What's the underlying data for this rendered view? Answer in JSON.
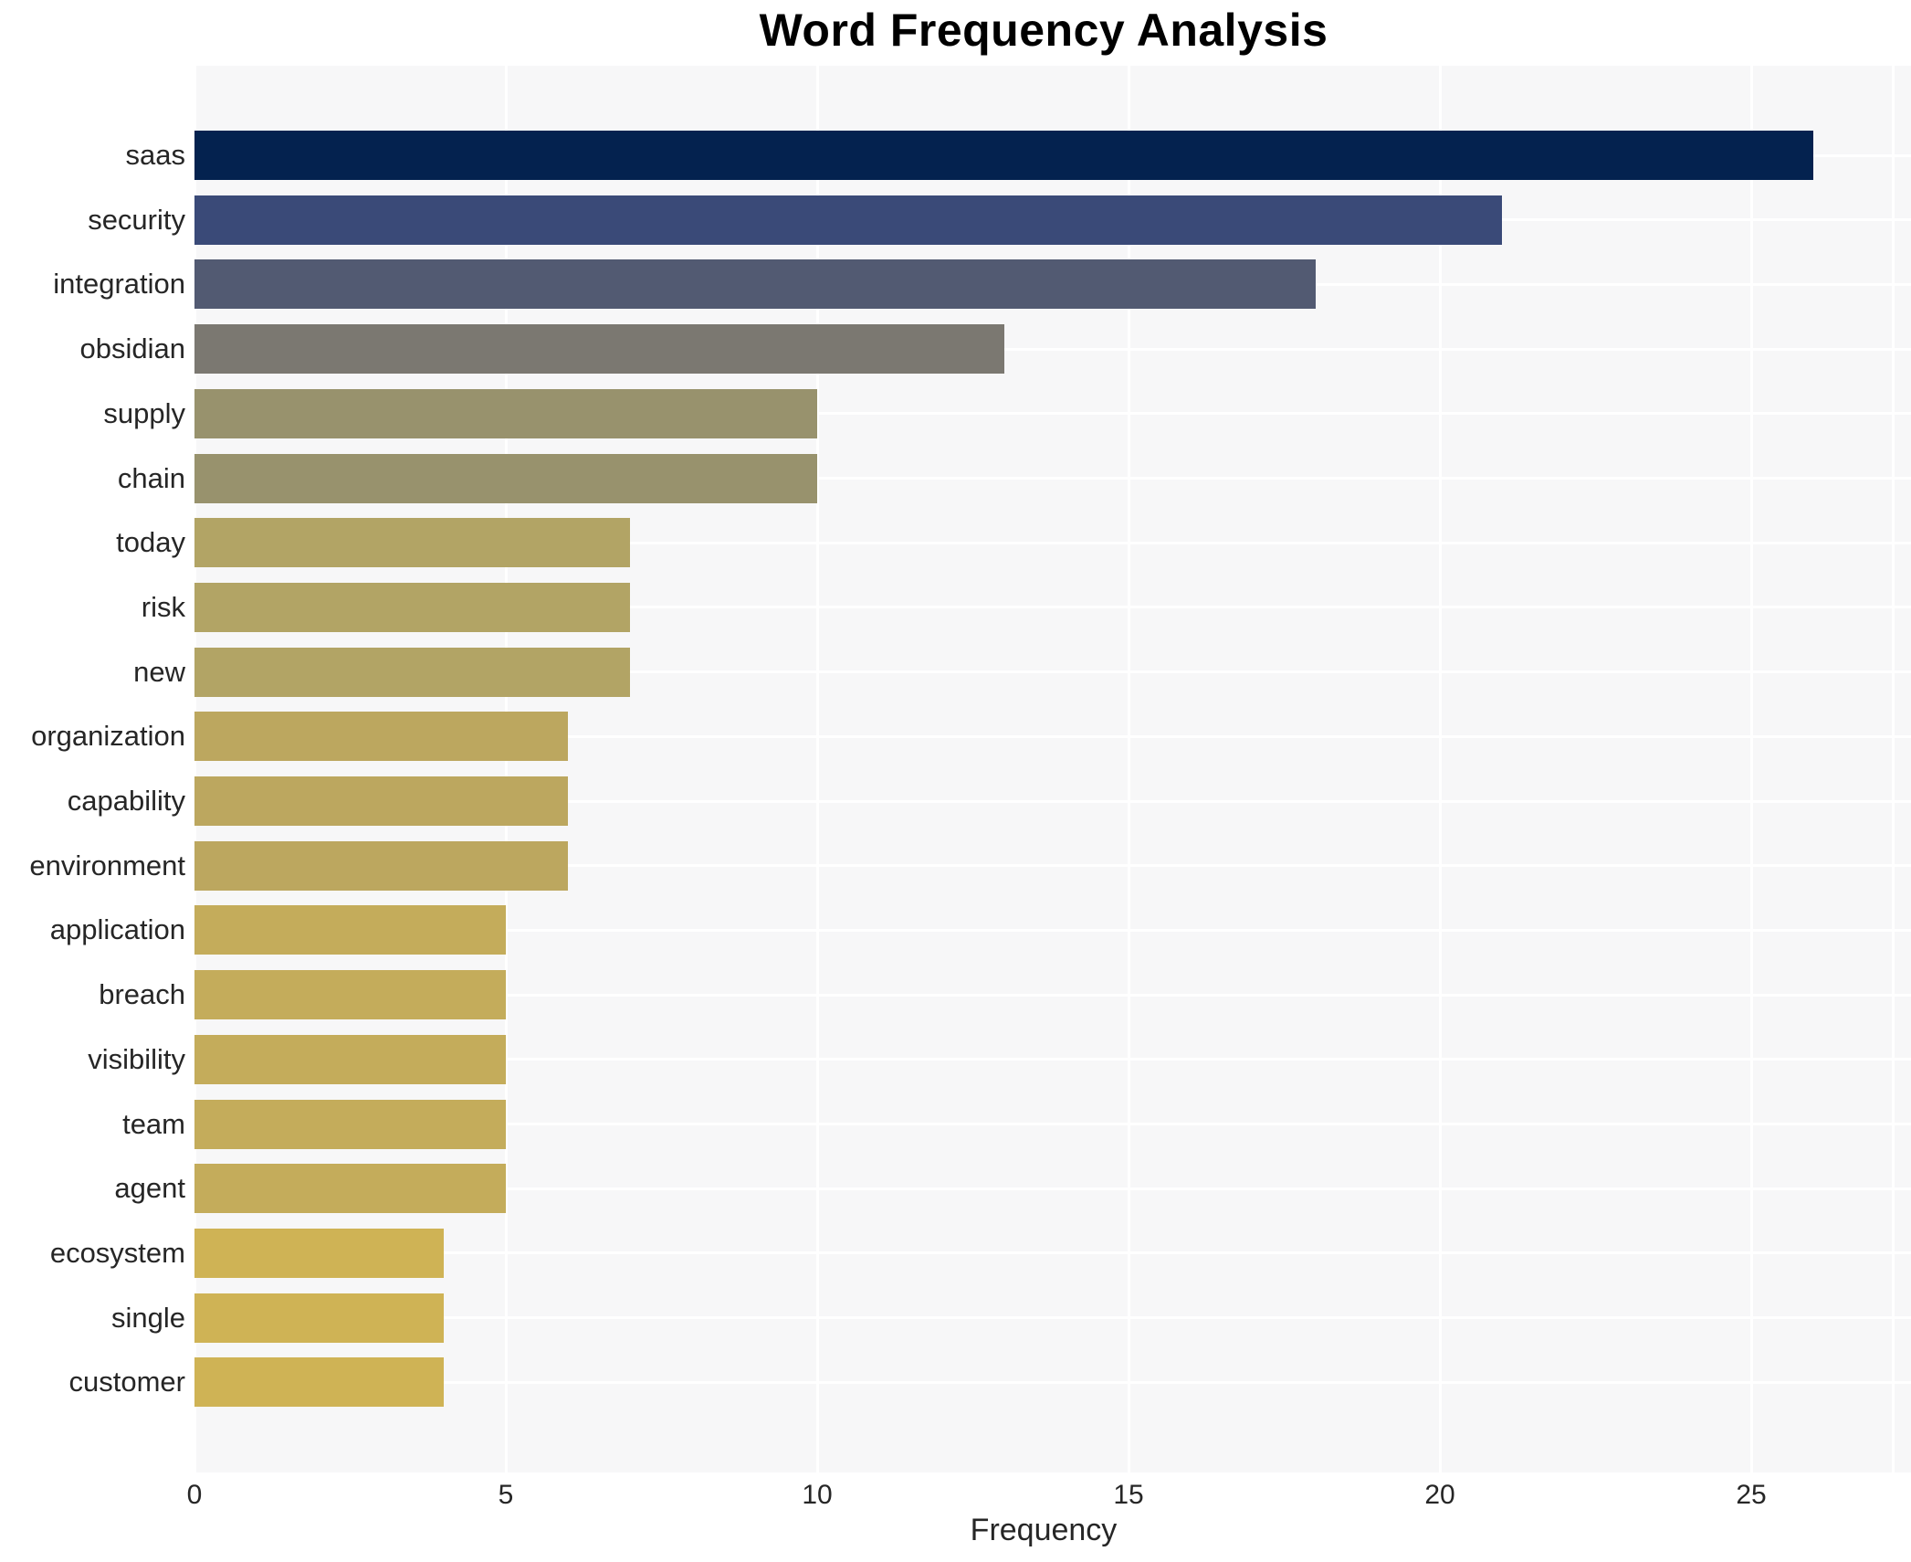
{
  "chart_data": {
    "type": "bar",
    "orientation": "horizontal",
    "title": "Word Frequency Analysis",
    "xlabel": "Frequency",
    "ylabel": "",
    "categories": [
      "saas",
      "security",
      "integration",
      "obsidian",
      "supply",
      "chain",
      "today",
      "risk",
      "new",
      "organization",
      "capability",
      "environment",
      "application",
      "breach",
      "visibility",
      "team",
      "agent",
      "ecosystem",
      "single",
      "customer"
    ],
    "values": [
      26,
      21,
      18,
      13,
      10,
      10,
      7,
      7,
      7,
      6,
      6,
      6,
      5,
      5,
      5,
      5,
      5,
      4,
      4,
      4
    ],
    "bar_colors": [
      "#04224f",
      "#3a4a78",
      "#525a72",
      "#7b7871",
      "#98926d",
      "#98926d",
      "#b2a465",
      "#b2a465",
      "#b2a465",
      "#bca75f",
      "#bca75f",
      "#bca75f",
      "#c4ac5b",
      "#c4ac5b",
      "#c4ac5b",
      "#c4ac5b",
      "#c4ac5b",
      "#cfb355",
      "#cfb355",
      "#cfb355"
    ],
    "xticks": [
      0,
      5,
      10,
      15,
      20,
      25
    ],
    "xlim": [
      0,
      27.6
    ],
    "grid": true,
    "legend": "none",
    "plot_bg": "#f7f7f8",
    "page_bg": "#ffffff",
    "grid_color": "#ffffff"
  }
}
